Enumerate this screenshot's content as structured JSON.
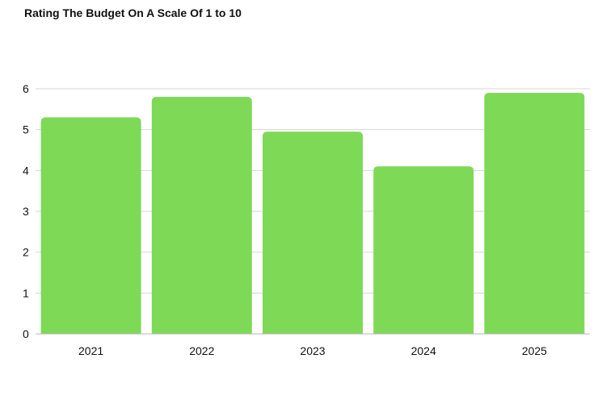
{
  "chart_data": {
    "type": "bar",
    "title": "Rating The Budget On A Scale Of 1 to 10",
    "xlabel": "",
    "ylabel": "",
    "categories": [
      "2021",
      "2022",
      "2023",
      "2024",
      "2025"
    ],
    "values": [
      5.3,
      5.8,
      4.95,
      4.1,
      5.9
    ],
    "ylim": [
      0,
      6
    ],
    "yticks": [
      0,
      1,
      2,
      3,
      4,
      5,
      6
    ],
    "grid": true,
    "legend": "none",
    "colors": {
      "bar": "#7ed957"
    }
  }
}
